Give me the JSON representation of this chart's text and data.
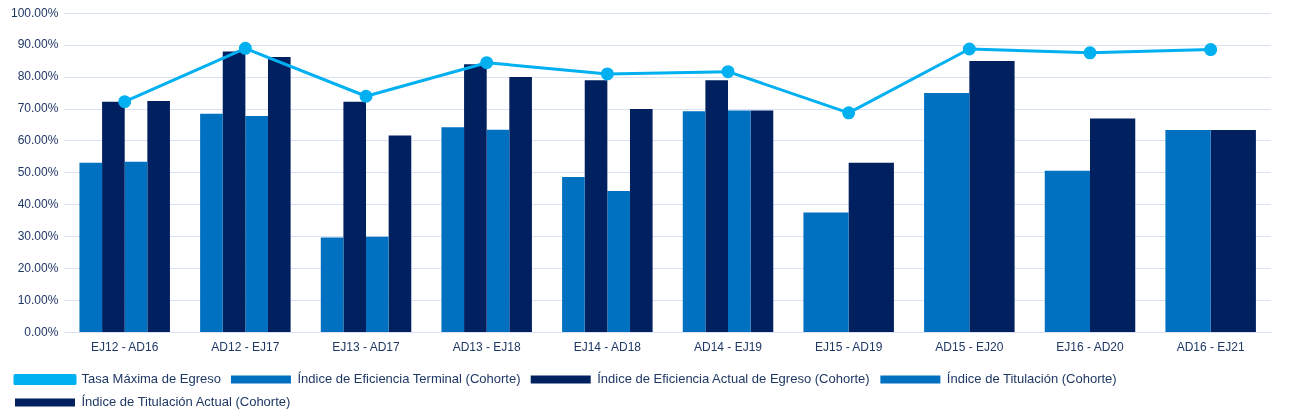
{
  "chart_data": {
    "type": "bar",
    "categories": [
      "EJ12 - AD16",
      "AD12 - EJ17",
      "EJ13 - AD17",
      "AD13 - EJ18",
      "EJ14 - AD18",
      "AD14 - EJ19",
      "EJ15 - AD19",
      "AD15 - EJ20",
      "EJ16 - AD20",
      "AD16 - EJ21"
    ],
    "series": [
      {
        "name": "Índice de Eficiencia Terminal (Cohorte)",
        "color": "#0070c0",
        "values": [
          53.2,
          68.5,
          29.8,
          64.3,
          48.7,
          69.3,
          37.6,
          75.0,
          50.7,
          63.4
        ]
      },
      {
        "name": "Índice de Eficiencia Actual de Egreso (Cohorte)",
        "color": "#002060",
        "values": [
          72.3,
          88.0,
          72.3,
          84.0,
          79.0,
          79.0,
          53.2,
          85.0,
          67.0,
          63.4
        ]
      },
      {
        "name": "Índice de Titulación (Cohorte)",
        "color": "#0070c0",
        "values": [
          53.5,
          67.8,
          30.0,
          63.5,
          44.3,
          69.5,
          null,
          null,
          null,
          null
        ]
      },
      {
        "name": "Índice de Titulación Actual (Cohorte)",
        "color": "#002060",
        "values": [
          72.5,
          86.3,
          61.7,
          80.0,
          70.0,
          69.5,
          null,
          null,
          null,
          null
        ]
      },
      {
        "name": "Tasa Máxima de Egreso",
        "type": "line",
        "color": "#00b0f0",
        "marker": "circle",
        "values": [
          72.3,
          89.0,
          74.0,
          84.5,
          81.0,
          81.7,
          68.8,
          88.8,
          87.6,
          88.6
        ]
      }
    ],
    "ylim": [
      0,
      100
    ],
    "yticks": [
      {
        "value": 0,
        "label": "0.00%"
      },
      {
        "value": 10,
        "label": "10.00%"
      },
      {
        "value": 20,
        "label": "20.00%"
      },
      {
        "value": 30,
        "label": "30.00%"
      },
      {
        "value": 40,
        "label": "40.00%"
      },
      {
        "value": 50,
        "label": "50.00%"
      },
      {
        "value": 60,
        "label": "60.00%"
      },
      {
        "value": 70,
        "label": "70.00%"
      },
      {
        "value": 80,
        "label": "80.00%"
      },
      {
        "value": 90,
        "label": "90.00%"
      },
      {
        "value": 100,
        "label": "100.00%"
      }
    ],
    "grid": "y",
    "legend": "bottom"
  }
}
